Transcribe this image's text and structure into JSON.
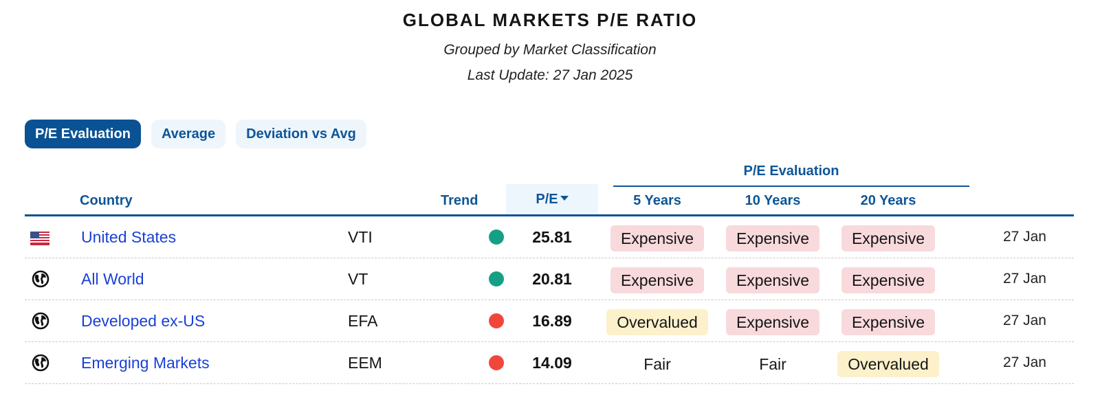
{
  "header": {
    "title": "GLOBAL MARKETS P/E RATIO",
    "subtitle": "Grouped by Market Classification",
    "last_update": "Last Update: 27 Jan 2025"
  },
  "tabs": [
    {
      "label": "P/E Evaluation",
      "active": true
    },
    {
      "label": "Average",
      "active": false
    },
    {
      "label": "Deviation vs Avg",
      "active": false
    }
  ],
  "table": {
    "group_header": "P/E Evaluation",
    "columns": {
      "country": "Country",
      "trend": "Trend",
      "pe": "P/E",
      "y5": "5 Years",
      "y10": "10 Years",
      "y20": "20 Years"
    },
    "sort": {
      "column": "pe",
      "direction": "desc",
      "icon": "caret-down-icon"
    },
    "rows": [
      {
        "icon": "us-flag-icon",
        "country": "United States",
        "ticker": "VTI",
        "trend": "up",
        "trend_color": "#15a085",
        "pe": "25.81",
        "y5": "Expensive",
        "y10": "Expensive",
        "y20": "Expensive",
        "date": "27 Jan"
      },
      {
        "icon": "globe-icon",
        "country": "All World",
        "ticker": "VT",
        "trend": "up",
        "trend_color": "#15a085",
        "pe": "20.81",
        "y5": "Expensive",
        "y10": "Expensive",
        "y20": "Expensive",
        "date": "27 Jan"
      },
      {
        "icon": "globe-icon",
        "country": "Developed ex-US",
        "ticker": "EFA",
        "trend": "down",
        "trend_color": "#f0473a",
        "pe": "16.89",
        "y5": "Overvalued",
        "y10": "Expensive",
        "y20": "Expensive",
        "date": "27 Jan"
      },
      {
        "icon": "globe-icon",
        "country": "Emerging Markets",
        "ticker": "EEM",
        "trend": "down",
        "trend_color": "#f0473a",
        "pe": "14.09",
        "y5": "Fair",
        "y10": "Fair",
        "y20": "Overvalued",
        "date": "27 Jan"
      }
    ]
  },
  "colors": {
    "accent": "#0b5294",
    "link": "#1a3fd8",
    "expensive_bg": "#f8d9dc",
    "overvalued_bg": "#fdf1cb",
    "trend_up": "#15a085",
    "trend_down": "#f0473a"
  }
}
